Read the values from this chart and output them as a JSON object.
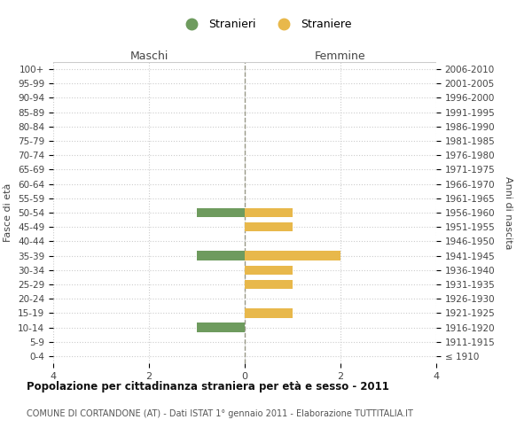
{
  "age_groups": [
    "100+",
    "95-99",
    "90-94",
    "85-89",
    "80-84",
    "75-79",
    "70-74",
    "65-69",
    "60-64",
    "55-59",
    "50-54",
    "45-49",
    "40-44",
    "35-39",
    "30-34",
    "25-29",
    "20-24",
    "15-19",
    "10-14",
    "5-9",
    "0-4"
  ],
  "birth_years": [
    "≤ 1910",
    "1911-1915",
    "1916-1920",
    "1921-1925",
    "1926-1930",
    "1931-1935",
    "1936-1940",
    "1941-1945",
    "1946-1950",
    "1951-1955",
    "1956-1960",
    "1961-1965",
    "1966-1970",
    "1971-1975",
    "1976-1980",
    "1981-1985",
    "1986-1990",
    "1991-1995",
    "1996-2000",
    "2001-2005",
    "2006-2010"
  ],
  "males": [
    0,
    0,
    0,
    0,
    0,
    0,
    0,
    0,
    0,
    0,
    1,
    0,
    0,
    1,
    0,
    0,
    0,
    0,
    1,
    0,
    0
  ],
  "females": [
    0,
    0,
    0,
    0,
    0,
    0,
    0,
    0,
    0,
    0,
    1,
    1,
    0,
    2,
    1,
    1,
    0,
    1,
    0,
    0,
    0
  ],
  "male_color": "#6e9b5e",
  "female_color": "#e8b84b",
  "title1": "Popolazione per cittadinanza straniera per età e sesso - 2011",
  "title2": "COMUNE DI CORTANDONE (AT) - Dati ISTAT 1° gennaio 2011 - Elaborazione TUTTITALIA.IT",
  "xlabel_left": "Maschi",
  "xlabel_right": "Femmine",
  "ylabel_left": "Fasce di età",
  "ylabel_right": "Anni di nascita",
  "legend_male": "Stranieri",
  "legend_female": "Straniere",
  "xlim": 4,
  "background_color": "#ffffff",
  "grid_color": "#cccccc",
  "bar_height": 0.65
}
